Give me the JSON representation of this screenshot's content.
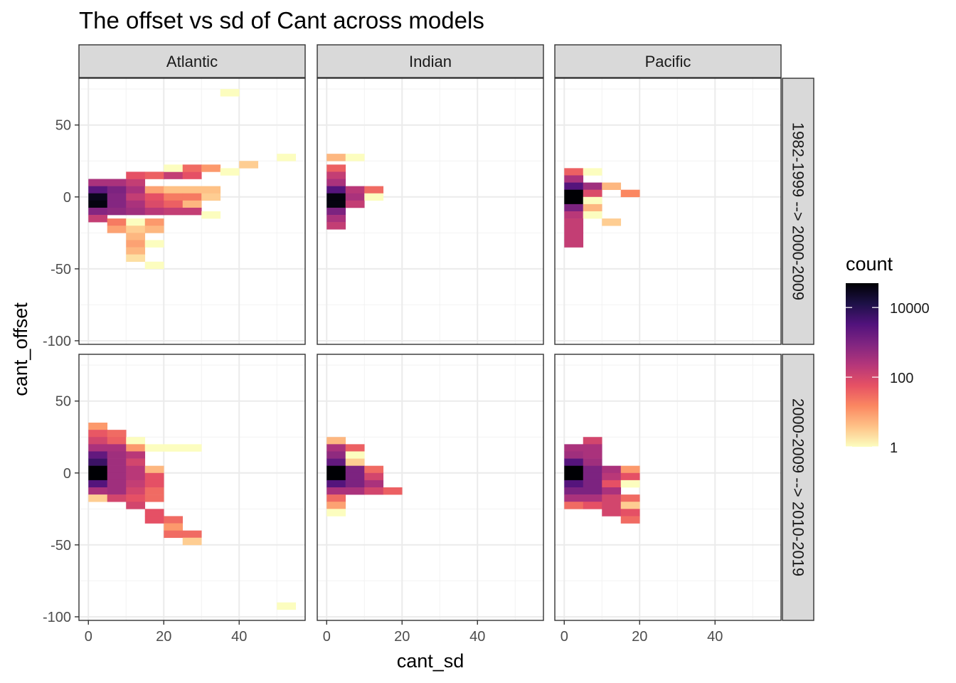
{
  "chart_data": {
    "type": "heatmap",
    "title": "The offset vs sd of Cant across models",
    "xlabel": "cant_sd",
    "ylabel": "cant_offset",
    "xlim": [
      -2.5,
      57.5
    ],
    "ylim": [
      -102.5,
      82.5
    ],
    "x_ticks": [
      0,
      20,
      40
    ],
    "y_ticks": [
      50,
      0,
      -50,
      -100
    ],
    "bin_width": 5,
    "columns": [
      "Atlantic",
      "Indian",
      "Pacific"
    ],
    "rows": [
      "1982-1999 --> 2000-2009",
      "2000-2009 --> 2010-2019"
    ],
    "legend": {
      "title": "count",
      "scale": "log10",
      "min": 1,
      "max": 50000,
      "breaks": [
        1,
        100,
        10000
      ],
      "break_labels": [
        "1",
        "100",
        "10000"
      ],
      "palette": [
        "#FCFDBF",
        "#FEC287",
        "#FB8761",
        "#E65164",
        "#B5367A",
        "#812581",
        "#51127C",
        "#1D1147",
        "#000004"
      ]
    },
    "panels": [
      {
        "column": "Atlantic",
        "row": "1982-1999 --> 2000-2009",
        "cells": [
          [
            37.5,
            72.5,
            1
          ],
          [
            2.5,
            10,
            300
          ],
          [
            7.5,
            10,
            300
          ],
          [
            12.5,
            10,
            150
          ],
          [
            12.5,
            15,
            60
          ],
          [
            17.5,
            15,
            40
          ],
          [
            22.5,
            15,
            150
          ],
          [
            27.5,
            15,
            60
          ],
          [
            22.5,
            20,
            1
          ],
          [
            27.5,
            20,
            30
          ],
          [
            32.5,
            20,
            10
          ],
          [
            42.5,
            22.5,
            3
          ],
          [
            52.5,
            27.5,
            1
          ],
          [
            37.5,
            17.5,
            1
          ],
          [
            2.5,
            5,
            2500
          ],
          [
            7.5,
            5,
            1000
          ],
          [
            12.5,
            5,
            300
          ],
          [
            17.5,
            5,
            8
          ],
          [
            22.5,
            5,
            4
          ],
          [
            27.5,
            5,
            4
          ],
          [
            32.5,
            5,
            4
          ],
          [
            2.5,
            0,
            30000
          ],
          [
            7.5,
            0,
            800
          ],
          [
            12.5,
            0,
            150
          ],
          [
            17.5,
            0,
            60
          ],
          [
            22.5,
            0,
            20
          ],
          [
            27.5,
            0,
            20
          ],
          [
            32.5,
            0,
            3
          ],
          [
            2.5,
            -5,
            40000
          ],
          [
            7.5,
            -5,
            800
          ],
          [
            12.5,
            -5,
            300
          ],
          [
            17.5,
            -5,
            80
          ],
          [
            22.5,
            -5,
            40
          ],
          [
            27.5,
            -5,
            5
          ],
          [
            2.5,
            -10,
            800
          ],
          [
            7.5,
            -10,
            600
          ],
          [
            12.5,
            -10,
            400
          ],
          [
            17.5,
            -10,
            200
          ],
          [
            22.5,
            -10,
            150
          ],
          [
            27.5,
            -10,
            150
          ],
          [
            32.5,
            -12.5,
            1
          ],
          [
            2.5,
            -15,
            150
          ],
          [
            7.5,
            -17.5,
            20
          ],
          [
            12.5,
            -17.5,
            1
          ],
          [
            17.5,
            -17.5,
            10
          ],
          [
            7.5,
            -22.5,
            8
          ],
          [
            12.5,
            -22.5,
            3
          ],
          [
            17.5,
            -22.5,
            5
          ],
          [
            12.5,
            -27.5,
            5
          ],
          [
            12.5,
            -32.5,
            8
          ],
          [
            17.5,
            -32.5,
            1
          ],
          [
            12.5,
            -37.5,
            5
          ],
          [
            12.5,
            -42.5,
            2
          ],
          [
            17.5,
            -47.5,
            1
          ]
        ]
      },
      {
        "column": "Indian",
        "row": "1982-1999 --> 2000-2009",
        "cells": [
          [
            2.5,
            27.5,
            5
          ],
          [
            7.5,
            27.5,
            1
          ],
          [
            2.5,
            20,
            40
          ],
          [
            2.5,
            15,
            150
          ],
          [
            2.5,
            10,
            300
          ],
          [
            2.5,
            5,
            3000
          ],
          [
            7.5,
            5,
            200
          ],
          [
            12.5,
            5,
            30
          ],
          [
            2.5,
            0,
            40000
          ],
          [
            7.5,
            0,
            300
          ],
          [
            12.5,
            0,
            1
          ],
          [
            2.5,
            -5,
            40000
          ],
          [
            7.5,
            -5,
            150
          ],
          [
            2.5,
            -10,
            1000
          ],
          [
            2.5,
            -15,
            300
          ],
          [
            2.5,
            -20,
            150
          ]
        ]
      },
      {
        "column": "Pacific",
        "row": "1982-1999 --> 2000-2009",
        "cells": [
          [
            2.5,
            17.5,
            40
          ],
          [
            7.5,
            17.5,
            1
          ],
          [
            2.5,
            12.5,
            300
          ],
          [
            2.5,
            7.5,
            3000
          ],
          [
            7.5,
            7.5,
            400
          ],
          [
            12.5,
            7.5,
            5
          ],
          [
            2.5,
            2.5,
            50000
          ],
          [
            7.5,
            2.5,
            80
          ],
          [
            17.5,
            2.5,
            15
          ],
          [
            2.5,
            -2.5,
            50000
          ],
          [
            7.5,
            -2.5,
            1
          ],
          [
            2.5,
            -7.5,
            1000
          ],
          [
            7.5,
            -7.5,
            5
          ],
          [
            2.5,
            -12.5,
            200
          ],
          [
            7.5,
            -12.5,
            1
          ],
          [
            2.5,
            -17.5,
            150
          ],
          [
            12.5,
            -17.5,
            3
          ],
          [
            2.5,
            -22.5,
            150
          ],
          [
            2.5,
            -27.5,
            150
          ],
          [
            2.5,
            -32.5,
            150
          ]
        ]
      },
      {
        "column": "Atlantic",
        "row": "2000-2009 --> 2010-2019",
        "cells": [
          [
            2.5,
            32.5,
            10
          ],
          [
            2.5,
            27.5,
            50
          ],
          [
            7.5,
            27.5,
            30
          ],
          [
            2.5,
            22.5,
            100
          ],
          [
            7.5,
            22.5,
            40
          ],
          [
            12.5,
            22.5,
            1
          ],
          [
            2.5,
            17.5,
            300
          ],
          [
            7.5,
            17.5,
            300
          ],
          [
            12.5,
            17.5,
            10
          ],
          [
            17.5,
            17.5,
            1
          ],
          [
            22.5,
            17.5,
            1
          ],
          [
            27.5,
            17.5,
            1
          ],
          [
            2.5,
            12.5,
            2000
          ],
          [
            7.5,
            12.5,
            400
          ],
          [
            12.5,
            12.5,
            200
          ],
          [
            2.5,
            7.5,
            6000
          ],
          [
            7.5,
            7.5,
            400
          ],
          [
            12.5,
            7.5,
            100
          ],
          [
            2.5,
            2.5,
            50000
          ],
          [
            7.5,
            2.5,
            400
          ],
          [
            12.5,
            2.5,
            200
          ],
          [
            17.5,
            2.5,
            5
          ],
          [
            2.5,
            -2.5,
            50000
          ],
          [
            7.5,
            -2.5,
            400
          ],
          [
            12.5,
            -2.5,
            200
          ],
          [
            17.5,
            -2.5,
            60
          ],
          [
            2.5,
            -7.5,
            3000
          ],
          [
            7.5,
            -7.5,
            400
          ],
          [
            12.5,
            -7.5,
            150
          ],
          [
            17.5,
            -7.5,
            60
          ],
          [
            2.5,
            -12.5,
            300
          ],
          [
            7.5,
            -12.5,
            400
          ],
          [
            12.5,
            -12.5,
            100
          ],
          [
            17.5,
            -12.5,
            30
          ],
          [
            2.5,
            -17.5,
            3
          ],
          [
            7.5,
            -17.5,
            100
          ],
          [
            12.5,
            -17.5,
            60
          ],
          [
            17.5,
            -17.5,
            30
          ],
          [
            12.5,
            -22.5,
            100
          ],
          [
            17.5,
            -27.5,
            60
          ],
          [
            17.5,
            -32.5,
            60
          ],
          [
            22.5,
            -32.5,
            30
          ],
          [
            22.5,
            -37.5,
            10
          ],
          [
            22.5,
            -42.5,
            30
          ],
          [
            27.5,
            -42.5,
            30
          ],
          [
            27.5,
            -47.5,
            3
          ],
          [
            52.5,
            -92.5,
            1
          ]
        ]
      },
      {
        "column": "Indian",
        "row": "2000-2009 --> 2010-2019",
        "cells": [
          [
            2.5,
            22.5,
            5
          ],
          [
            2.5,
            17.5,
            300
          ],
          [
            7.5,
            17.5,
            40
          ],
          [
            2.5,
            12.5,
            600
          ],
          [
            7.5,
            12.5,
            1
          ],
          [
            2.5,
            7.5,
            2000
          ],
          [
            7.5,
            7.5,
            3
          ],
          [
            2.5,
            2.5,
            50000
          ],
          [
            7.5,
            2.5,
            1000
          ],
          [
            12.5,
            2.5,
            30
          ],
          [
            2.5,
            -2.5,
            50000
          ],
          [
            7.5,
            -2.5,
            1000
          ],
          [
            12.5,
            -2.5,
            100
          ],
          [
            2.5,
            -7.5,
            3000
          ],
          [
            7.5,
            -7.5,
            1000
          ],
          [
            12.5,
            -7.5,
            300
          ],
          [
            2.5,
            -12.5,
            300
          ],
          [
            7.5,
            -12.5,
            300
          ],
          [
            12.5,
            -12.5,
            100
          ],
          [
            17.5,
            -12.5,
            40
          ],
          [
            2.5,
            -17.5,
            30
          ],
          [
            2.5,
            -22.5,
            8
          ],
          [
            2.5,
            -27.5,
            1
          ]
        ]
      },
      {
        "column": "Pacific",
        "row": "2000-2009 --> 2010-2019",
        "cells": [
          [
            7.5,
            22.5,
            100
          ],
          [
            2.5,
            17.5,
            300
          ],
          [
            7.5,
            17.5,
            300
          ],
          [
            2.5,
            12.5,
            400
          ],
          [
            7.5,
            12.5,
            300
          ],
          [
            2.5,
            7.5,
            3000
          ],
          [
            7.5,
            7.5,
            400
          ],
          [
            2.5,
            2.5,
            50000
          ],
          [
            7.5,
            2.5,
            1000
          ],
          [
            12.5,
            2.5,
            300
          ],
          [
            17.5,
            2.5,
            10
          ],
          [
            2.5,
            -2.5,
            50000
          ],
          [
            7.5,
            -2.5,
            1000
          ],
          [
            12.5,
            -2.5,
            200
          ],
          [
            17.5,
            -2.5,
            60
          ],
          [
            2.5,
            -7.5,
            3000
          ],
          [
            7.5,
            -7.5,
            1000
          ],
          [
            12.5,
            -7.5,
            60
          ],
          [
            17.5,
            -7.5,
            1
          ],
          [
            2.5,
            -12.5,
            1000
          ],
          [
            7.5,
            -12.5,
            1000
          ],
          [
            12.5,
            -12.5,
            300
          ],
          [
            2.5,
            -17.5,
            300
          ],
          [
            7.5,
            -17.5,
            300
          ],
          [
            12.5,
            -17.5,
            100
          ],
          [
            17.5,
            -17.5,
            30
          ],
          [
            2.5,
            -22.5,
            30
          ],
          [
            7.5,
            -22.5,
            60
          ],
          [
            12.5,
            -22.5,
            100
          ],
          [
            17.5,
            -22.5,
            3
          ],
          [
            12.5,
            -27.5,
            100
          ],
          [
            17.5,
            -27.5,
            60
          ],
          [
            17.5,
            -32.5,
            30
          ]
        ]
      }
    ]
  }
}
